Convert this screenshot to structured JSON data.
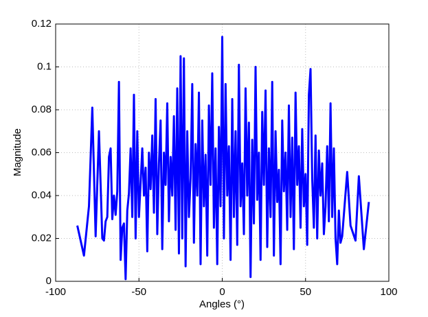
{
  "chart_data": {
    "type": "line",
    "x_label": "Angles (°)",
    "y_label": "Magnitude",
    "xlim": [
      -100,
      100
    ],
    "xticks": [
      -100,
      -50,
      0,
      50,
      100
    ],
    "ylim": [
      0,
      0.12
    ],
    "yticks": [
      0,
      0.02,
      0.04,
      0.06,
      0.08,
      0.1,
      0.12
    ],
    "grid": true,
    "series": [
      {
        "color": "#0000ff",
        "x": [
          -87,
          -83,
          -80,
          -78,
          -76,
          -74,
          -72,
          -71,
          -70,
          -69,
          -68,
          -67,
          -66,
          -65,
          -64,
          -63,
          -62,
          -61,
          -60,
          -59,
          -58,
          -57,
          -56,
          -55,
          -54,
          -53,
          -52,
          -51,
          -50,
          -49,
          -48,
          -47,
          -46,
          -45,
          -44,
          -43,
          -42,
          -41,
          -40,
          -39,
          -38,
          -37,
          -36,
          -35,
          -34,
          -33,
          -32,
          -31,
          -30,
          -29,
          -28,
          -27,
          -26,
          -25,
          -24,
          -23,
          -22,
          -21,
          -20,
          -19,
          -18,
          -17,
          -16,
          -15,
          -14,
          -13,
          -12,
          -11,
          -10,
          -9,
          -8,
          -7,
          -6,
          -5,
          -4,
          -3,
          -2,
          -1,
          0,
          1,
          2,
          3,
          4,
          5,
          6,
          7,
          8,
          9,
          10,
          11,
          12,
          13,
          14,
          15,
          16,
          17,
          18,
          19,
          20,
          21,
          22,
          23,
          24,
          25,
          26,
          27,
          28,
          29,
          30,
          31,
          32,
          33,
          34,
          35,
          36,
          37,
          38,
          39,
          40,
          41,
          42,
          43,
          44,
          45,
          46,
          47,
          48,
          49,
          50,
          51,
          52,
          53,
          54,
          55,
          56,
          57,
          58,
          59,
          60,
          61,
          62,
          63,
          64,
          65,
          66,
          67,
          68,
          69,
          70,
          71,
          72,
          75,
          77,
          80,
          82,
          85,
          88
        ],
        "values": [
          0.026,
          0.012,
          0.035,
          0.081,
          0.021,
          0.07,
          0.02,
          0.019,
          0.028,
          0.03,
          0.058,
          0.062,
          0.029,
          0.04,
          0.031,
          0.042,
          0.093,
          0.01,
          0.025,
          0.027,
          0.001,
          0.033,
          0.041,
          0.062,
          0.03,
          0.087,
          0.02,
          0.07,
          0.03,
          0.046,
          0.062,
          0.04,
          0.053,
          0.014,
          0.06,
          0.043,
          0.068,
          0.032,
          0.085,
          0.022,
          0.055,
          0.075,
          0.015,
          0.06,
          0.045,
          0.083,
          0.028,
          0.058,
          0.04,
          0.077,
          0.024,
          0.09,
          0.013,
          0.105,
          0.02,
          0.104,
          0.007,
          0.07,
          0.03,
          0.048,
          0.092,
          0.018,
          0.064,
          0.04,
          0.088,
          0.008,
          0.075,
          0.035,
          0.059,
          0.012,
          0.082,
          0.045,
          0.097,
          0.025,
          0.062,
          0.008,
          0.072,
          0.035,
          0.114,
          0.02,
          0.092,
          0.04,
          0.063,
          0.01,
          0.085,
          0.03,
          0.07,
          0.017,
          0.101,
          0.035,
          0.055,
          0.022,
          0.09,
          0.04,
          0.074,
          0.002,
          0.066,
          0.027,
          0.1,
          0.038,
          0.06,
          0.01,
          0.079,
          0.045,
          0.089,
          0.016,
          0.062,
          0.03,
          0.093,
          0.012,
          0.07,
          0.037,
          0.052,
          0.008,
          0.075,
          0.042,
          0.06,
          0.024,
          0.082,
          0.03,
          0.067,
          0.015,
          0.088,
          0.045,
          0.063,
          0.025,
          0.071,
          0.035,
          0.05,
          0.017,
          0.087,
          0.099,
          0.048,
          0.025,
          0.068,
          0.02,
          0.061,
          0.04,
          0.055,
          0.022,
          0.035,
          0.063,
          0.028,
          0.083,
          0.03,
          0.062,
          0.02,
          0.008,
          0.033,
          0.018,
          0.021,
          0.051,
          0.026,
          0.019,
          0.049,
          0.015,
          0.037
        ]
      }
    ]
  }
}
